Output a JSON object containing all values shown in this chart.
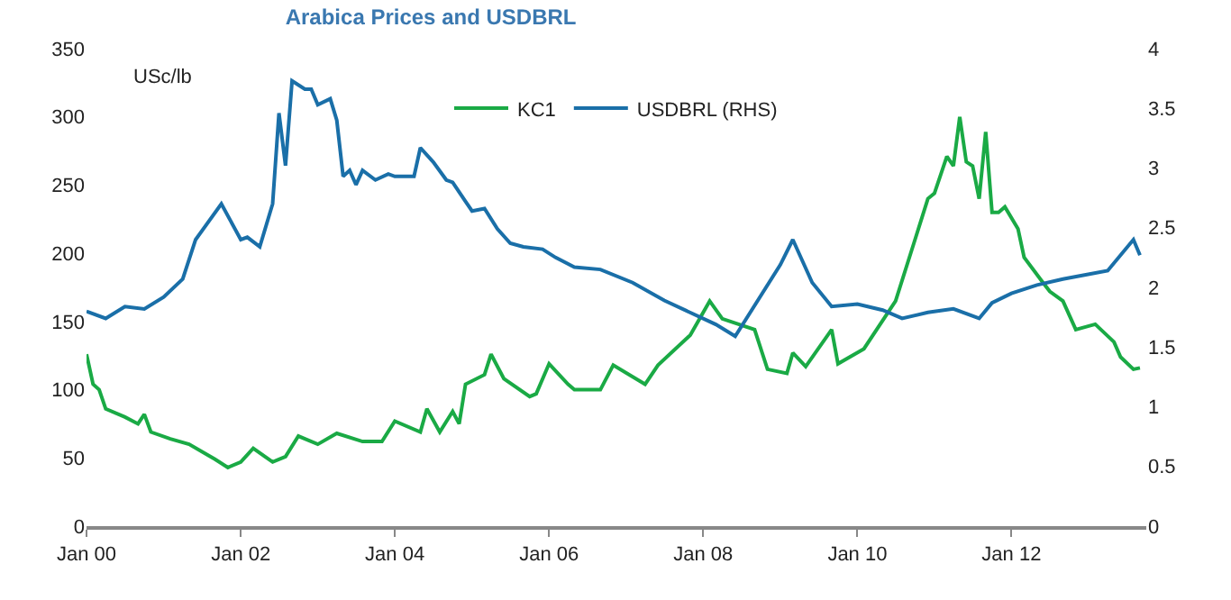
{
  "chart_data": {
    "type": "line",
    "title": "Arabica Prices and USDBRL",
    "ylabel": "USc/lb",
    "legend": "top",
    "marker": "none",
    "line_style": "solid",
    "xlim": [
      "2000-01",
      "2013-10"
    ],
    "xticks": [
      {
        "value": "2000-01",
        "label": "Jan 00"
      },
      {
        "value": "2002-01",
        "label": "Jan 02"
      },
      {
        "value": "2004-01",
        "label": "Jan 04"
      },
      {
        "value": "2006-01",
        "label": "Jan 06"
      },
      {
        "value": "2008-01",
        "label": "Jan 08"
      },
      {
        "value": "2010-01",
        "label": "Jan 10"
      },
      {
        "value": "2012-01",
        "label": "Jan 12"
      }
    ],
    "ylim": [
      0,
      350
    ],
    "yticks": [
      0,
      50,
      100,
      150,
      200,
      250,
      300,
      350
    ],
    "y2lim": [
      0,
      4
    ],
    "y2ticks": [
      0,
      0.5,
      1,
      1.5,
      2,
      2.5,
      3,
      3.5,
      4
    ],
    "series": [
      {
        "name": "KC1",
        "color": "#1aaa45",
        "x": [
          "2000-01",
          "2000-02",
          "2000-03",
          "2000-04",
          "2000-07",
          "2000-09",
          "2000-10",
          "2000-11",
          "2001-02",
          "2001-05",
          "2001-09",
          "2001-11",
          "2002-01",
          "2002-03",
          "2002-06",
          "2002-08",
          "2002-10",
          "2003-01",
          "2003-04",
          "2003-08",
          "2003-11",
          "2004-01",
          "2004-05",
          "2004-06",
          "2004-08",
          "2004-10",
          "2004-11",
          "2004-12",
          "2005-03",
          "2005-04",
          "2005-06",
          "2005-10",
          "2005-11",
          "2006-01",
          "2006-04",
          "2006-05",
          "2006-09",
          "2006-11",
          "2007-04",
          "2007-06",
          "2007-11",
          "2008-02",
          "2008-04",
          "2008-09",
          "2008-11",
          "2009-02",
          "2009-03",
          "2009-05",
          "2009-09",
          "2009-10",
          "2010-02",
          "2010-07",
          "2010-10",
          "2010-12",
          "2011-01",
          "2011-03",
          "2011-04",
          "2011-05",
          "2011-06",
          "2011-07",
          "2011-08",
          "2011-09",
          "2011-10",
          "2011-11",
          "2011-12",
          "2012-02",
          "2012-03",
          "2012-06",
          "2012-07",
          "2012-09",
          "2012-11",
          "2013-02",
          "2013-05",
          "2013-06",
          "2013-08",
          "2013-09"
        ],
        "values": [
          126,
          104,
          100,
          86,
          80,
          75,
          82,
          69,
          64,
          60,
          49,
          43,
          47,
          57,
          47,
          51,
          66,
          60,
          68,
          62,
          62,
          77,
          69,
          86,
          69,
          84,
          75,
          104,
          111,
          126,
          108,
          95,
          97,
          119,
          104,
          100,
          100,
          118,
          104,
          118,
          140,
          165,
          152,
          144,
          115,
          112,
          127,
          117,
          144,
          119,
          130,
          165,
          210,
          240,
          244,
          271,
          264,
          300,
          267,
          264,
          240,
          289,
          230,
          230,
          234,
          218,
          197,
          178,
          172,
          165,
          144,
          148,
          135,
          124,
          115,
          116
        ]
      },
      {
        "name": "USDBRL (RHS)",
        "color": "#1a6fa8",
        "axis": "y2",
        "x": [
          "2000-01",
          "2000-04",
          "2000-07",
          "2000-10",
          "2001-01",
          "2001-04",
          "2001-06",
          "2001-10",
          "2002-01",
          "2002-02",
          "2002-04",
          "2002-06",
          "2002-07",
          "2002-08",
          "2002-09",
          "2002-11",
          "2002-12",
          "2003-01",
          "2003-03",
          "2003-04",
          "2003-05",
          "2003-06",
          "2003-07",
          "2003-08",
          "2003-10",
          "2003-12",
          "2004-01",
          "2004-04",
          "2004-05",
          "2004-07",
          "2004-09",
          "2004-10",
          "2004-12",
          "2005-01",
          "2005-03",
          "2005-05",
          "2005-07",
          "2005-09",
          "2005-12",
          "2006-02",
          "2006-05",
          "2006-09",
          "2007-02",
          "2007-07",
          "2008-03",
          "2008-06",
          "2009-01",
          "2009-03",
          "2009-06",
          "2009-09",
          "2010-01",
          "2010-05",
          "2010-08",
          "2010-12",
          "2011-04",
          "2011-08",
          "2011-10",
          "2012-01",
          "2012-05",
          "2012-09",
          "2012-12",
          "2013-04",
          "2013-08",
          "2013-09"
        ],
        "values": [
          1.8,
          1.74,
          1.84,
          1.82,
          1.92,
          2.07,
          2.4,
          2.7,
          2.4,
          2.42,
          2.34,
          2.7,
          3.46,
          3.02,
          3.73,
          3.66,
          3.66,
          3.53,
          3.58,
          3.4,
          2.93,
          2.98,
          2.86,
          2.98,
          2.9,
          2.95,
          2.93,
          2.93,
          3.17,
          3.05,
          2.9,
          2.88,
          2.72,
          2.64,
          2.66,
          2.49,
          2.37,
          2.34,
          2.32,
          2.25,
          2.17,
          2.15,
          2.04,
          1.89,
          1.69,
          1.59,
          2.19,
          2.4,
          2.04,
          1.84,
          1.86,
          1.81,
          1.74,
          1.79,
          1.82,
          1.74,
          1.87,
          1.95,
          2.02,
          2.07,
          2.1,
          2.14,
          2.4,
          2.27
        ]
      }
    ]
  }
}
